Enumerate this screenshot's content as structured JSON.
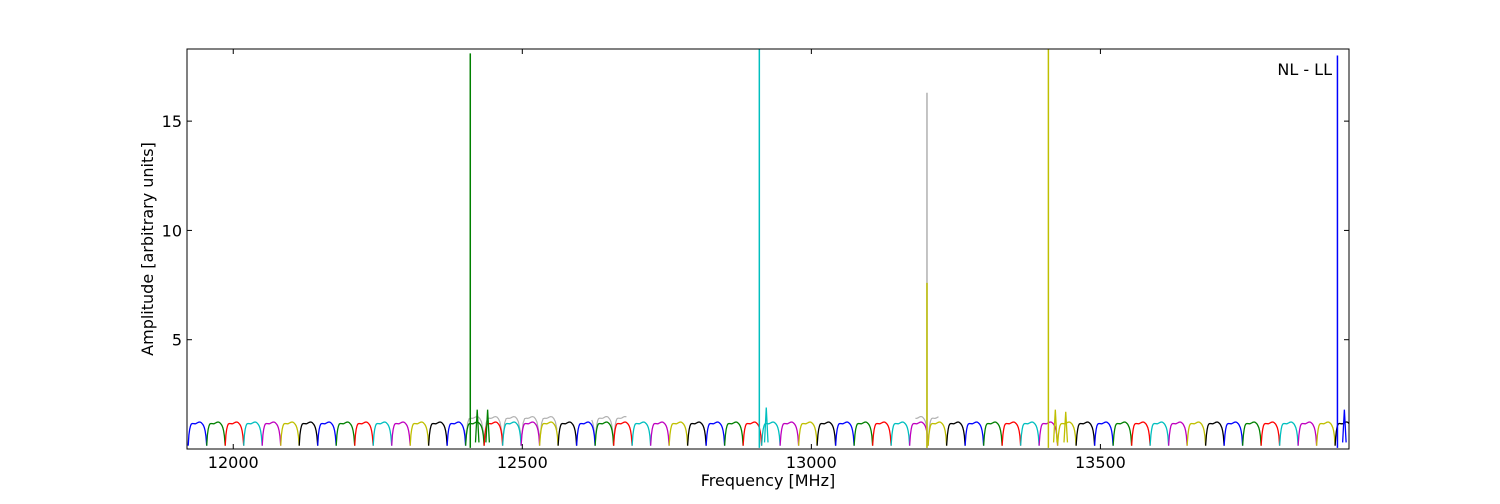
{
  "chart_data": {
    "type": "line",
    "title": "",
    "xlabel": "Frequency [MHz]",
    "ylabel": "Amplitude [arbitrary units]",
    "annotation": "NL - LL",
    "xlim": [
      11920,
      13930
    ],
    "ylim": [
      0,
      18.3
    ],
    "xticks": [
      12000,
      12500,
      13000,
      13500
    ],
    "yticks": [
      5,
      10,
      15
    ],
    "grid": false,
    "legend": "none",
    "band_width_mhz": 32,
    "band_start_mhz": 11922,
    "band_colors": [
      "#0000ff",
      "#008000",
      "#ff0000",
      "#00bfbf",
      "#bf00bf",
      "#bfbf00",
      "#000000"
    ],
    "band_peak_amplitude": 1.2,
    "band_dip_amplitude": 0.15,
    "background_series": {
      "color": "#b0b0b0",
      "ranges": [
        [
          12400,
          12560
        ],
        [
          12620,
          12680
        ],
        [
          13180,
          13220
        ]
      ],
      "peak_amplitude": 1.45
    },
    "spikes": [
      {
        "x": 12410,
        "y": 18.1,
        "color": "#008000"
      },
      {
        "x": 12910,
        "y": 18.3,
        "color": "#00bfbf"
      },
      {
        "x": 13200,
        "y": 16.3,
        "color": "#b0b0b0"
      },
      {
        "x": 13200,
        "y": 7.6,
        "color": "#bfbf00"
      },
      {
        "x": 13410,
        "y": 18.3,
        "color": "#bfbf00"
      },
      {
        "x": 13910,
        "y": 18.0,
        "color": "#0000ff"
      }
    ],
    "post_spike_bumps": [
      {
        "x": 12422,
        "y": 1.8,
        "color": "#008000"
      },
      {
        "x": 12440,
        "y": 1.8,
        "color": "#008000"
      },
      {
        "x": 12922,
        "y": 1.9,
        "color": "#00bfbf"
      },
      {
        "x": 13422,
        "y": 1.8,
        "color": "#bfbf00"
      },
      {
        "x": 13440,
        "y": 1.7,
        "color": "#bfbf00"
      },
      {
        "x": 13922,
        "y": 1.8,
        "color": "#0000ff"
      }
    ]
  }
}
